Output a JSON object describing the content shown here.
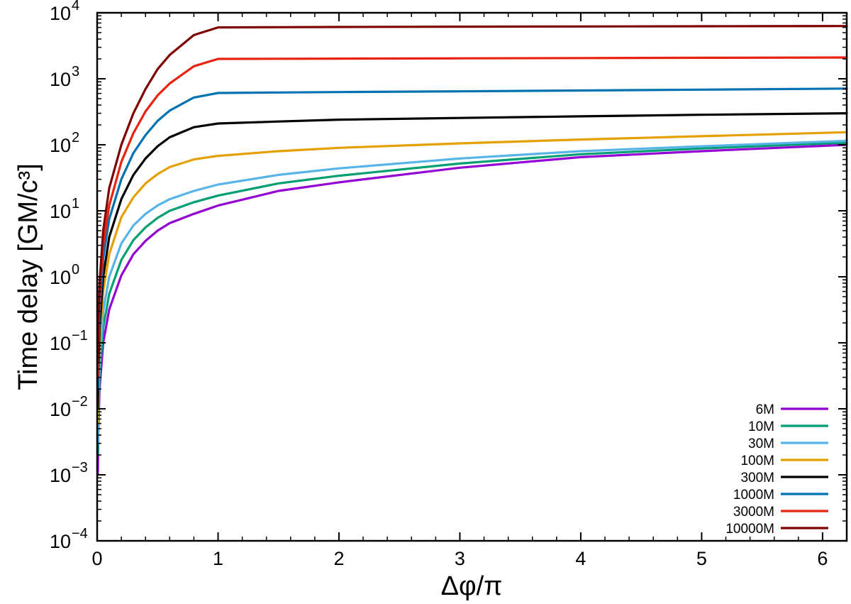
{
  "chart_data": {
    "type": "line",
    "title": "",
    "xlabel": "Δφ/π",
    "ylabel": "Time delay [GM/c³]",
    "xlim": [
      0,
      6.2
    ],
    "ylim": [
      0.0001,
      10000
    ],
    "yscale": "log",
    "grid": false,
    "legend_position": "bottom-right",
    "x_ticks": [
      0,
      1,
      2,
      3,
      4,
      5,
      6
    ],
    "x_tick_labels": [
      "0",
      "1",
      "2",
      "3",
      "4",
      "5",
      "6"
    ],
    "y_ticks": [
      -4,
      -3,
      -2,
      -1,
      0,
      1,
      2,
      3,
      4
    ],
    "y_tick_labels": [
      {
        "base": "10",
        "exp": "−4"
      },
      {
        "base": "10",
        "exp": "−3"
      },
      {
        "base": "10",
        "exp": "−2"
      },
      {
        "base": "10",
        "exp": "−1"
      },
      {
        "base": "10",
        "exp": "0"
      },
      {
        "base": "10",
        "exp": "1"
      },
      {
        "base": "10",
        "exp": "2"
      },
      {
        "base": "10",
        "exp": "3"
      },
      {
        "base": "10",
        "exp": "4"
      }
    ],
    "series": [
      {
        "name": "6M",
        "color": "#9400d3",
        "x": [
          0.005,
          0.01,
          0.02,
          0.05,
          0.1,
          0.2,
          0.3,
          0.4,
          0.5,
          0.6,
          0.8,
          1.0,
          1.5,
          2.0,
          3.0,
          4.0,
          5.0,
          6.2
        ],
        "y": [
          0.001,
          0.005,
          0.02,
          0.1,
          0.32,
          1.05,
          2.2,
          3.5,
          5.0,
          6.5,
          9.0,
          12,
          20,
          27,
          45,
          65,
          80,
          100
        ]
      },
      {
        "name": "10M",
        "color": "#009e73",
        "x": [
          0.005,
          0.01,
          0.02,
          0.05,
          0.1,
          0.2,
          0.3,
          0.4,
          0.5,
          0.6,
          0.8,
          1.0,
          1.5,
          2.0,
          3.0,
          4.0,
          5.0,
          6.2
        ],
        "y": [
          0.002,
          0.008,
          0.03,
          0.17,
          0.55,
          1.8,
          3.6,
          5.6,
          7.8,
          10,
          13.5,
          17,
          26,
          34,
          52,
          72,
          88,
          108
        ]
      },
      {
        "name": "30M",
        "color": "#56b4e9",
        "x": [
          0.005,
          0.01,
          0.02,
          0.05,
          0.1,
          0.2,
          0.3,
          0.4,
          0.5,
          0.6,
          0.8,
          1.0,
          1.5,
          2.0,
          3.0,
          4.0,
          5.0,
          6.2
        ],
        "y": [
          0.003,
          0.012,
          0.05,
          0.3,
          1.0,
          3.2,
          6.0,
          9.0,
          12,
          15,
          20,
          25,
          35,
          44,
          62,
          80,
          95,
          115
        ]
      },
      {
        "name": "100M",
        "color": "#e69f00",
        "x": [
          0.005,
          0.01,
          0.02,
          0.05,
          0.1,
          0.2,
          0.3,
          0.4,
          0.5,
          0.6,
          0.8,
          1.0,
          1.5,
          2.0,
          3.0,
          4.0,
          5.0,
          6.2
        ],
        "y": [
          0.006,
          0.025,
          0.1,
          0.6,
          2.2,
          8.0,
          16,
          26,
          36,
          46,
          60,
          68,
          80,
          90,
          105,
          120,
          135,
          155
        ]
      },
      {
        "name": "300M",
        "color": "#000000",
        "x": [
          0.005,
          0.01,
          0.02,
          0.05,
          0.1,
          0.2,
          0.3,
          0.4,
          0.5,
          0.6,
          0.8,
          1.0,
          1.5,
          2.0,
          3.0,
          4.0,
          5.0,
          6.2
        ],
        "y": [
          0.01,
          0.04,
          0.17,
          1.0,
          4.0,
          15,
          35,
          62,
          95,
          130,
          185,
          210,
          225,
          240,
          255,
          270,
          285,
          300
        ]
      },
      {
        "name": "1000M",
        "color": "#0072b2",
        "x": [
          0.005,
          0.01,
          0.02,
          0.05,
          0.1,
          0.2,
          0.3,
          0.4,
          0.5,
          0.6,
          0.8,
          1.0,
          1.5,
          2.0,
          3.0,
          4.0,
          5.0,
          6.2
        ],
        "y": [
          0.02,
          0.08,
          0.3,
          1.9,
          7.5,
          30,
          75,
          140,
          230,
          330,
          520,
          610,
          620,
          630,
          645,
          665,
          685,
          710
        ]
      },
      {
        "name": "3000M",
        "color": "#e8220f",
        "x": [
          0.005,
          0.01,
          0.02,
          0.05,
          0.1,
          0.2,
          0.3,
          0.4,
          0.5,
          0.6,
          0.8,
          1.0,
          1.5,
          2.0,
          3.0,
          4.0,
          5.0,
          6.2
        ],
        "y": [
          0.03,
          0.12,
          0.5,
          3.0,
          12,
          55,
          150,
          320,
          560,
          850,
          1550,
          2000,
          2010,
          2020,
          2040,
          2060,
          2080,
          2100
        ]
      },
      {
        "name": "10000M",
        "color": "#7f0000",
        "x": [
          0.005,
          0.01,
          0.02,
          0.05,
          0.1,
          0.2,
          0.3,
          0.4,
          0.5,
          0.6,
          0.8,
          1.0,
          1.5,
          2.0,
          3.0,
          4.0,
          5.0,
          6.2
        ],
        "y": [
          0.05,
          0.2,
          0.8,
          5.0,
          22,
          100,
          300,
          700,
          1400,
          2300,
          4600,
          6000,
          6050,
          6100,
          6150,
          6200,
          6250,
          6300
        ]
      }
    ]
  }
}
